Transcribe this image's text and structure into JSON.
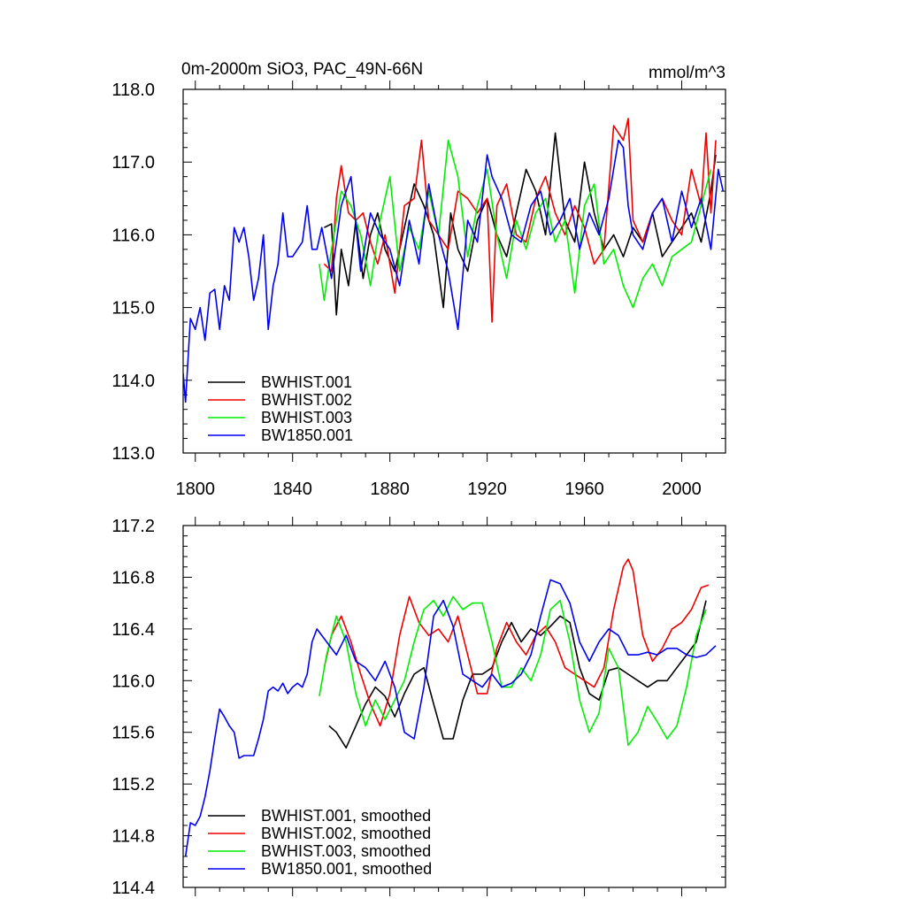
{
  "figure": {
    "title_left": "0m-2000m SiO3, PAC_49N-66N",
    "title_right": "mmol/m^3"
  },
  "colors": {
    "BWHIST.001": "#000000",
    "BWHIST.002": "#ee0000",
    "BWHIST.003": "#00ee00",
    "BW1850.001": "#0000ee"
  },
  "chart_data": [
    {
      "type": "line",
      "title": "0m-2000m SiO3, PAC_49N-66N",
      "xlim": [
        1795,
        2018
      ],
      "ylim": [
        113.0,
        118.0
      ],
      "x_ticks": [
        1800,
        1840,
        1880,
        1920,
        1960,
        2000
      ],
      "x_tick_labels": [
        "1800",
        "1840",
        "1880",
        "1920",
        "1960",
        "2000"
      ],
      "y_ticks": [
        113.0,
        114.0,
        115.0,
        116.0,
        117.0,
        118.0
      ],
      "y_tick_labels": [
        "113.0",
        "114.0",
        "115.0",
        "116.0",
        "117.0",
        "118.0"
      ],
      "legend": {
        "placement": "lower-left",
        "entries": [
          "BWHIST.001",
          "BWHIST.002",
          "BWHIST.003",
          "BW1850.001"
        ]
      },
      "series": [
        {
          "name": "BWHIST.001",
          "x": [
            1853,
            1856,
            1858,
            1860,
            1863,
            1866,
            1869,
            1872,
            1875,
            1878,
            1882,
            1886,
            1890,
            1894,
            1898,
            1902,
            1905,
            1908,
            1912,
            1916,
            1920,
            1924,
            1928,
            1932,
            1936,
            1940,
            1944,
            1948,
            1952,
            1956,
            1960,
            1964,
            1968,
            1972,
            1976,
            1980,
            1984,
            1988,
            1992,
            1996,
            2000,
            2004,
            2008,
            2012,
            2014
          ],
          "values": [
            116.1,
            116.15,
            114.9,
            115.8,
            115.3,
            116.2,
            115.4,
            116.0,
            116.3,
            115.8,
            115.5,
            116.1,
            116.7,
            116.4,
            116.0,
            115.0,
            116.3,
            115.8,
            115.5,
            116.2,
            116.5,
            116.0,
            115.7,
            116.3,
            116.9,
            116.6,
            116.0,
            117.4,
            116.2,
            115.9,
            117.0,
            116.3,
            115.8,
            116.0,
            115.7,
            116.1,
            115.9,
            116.3,
            115.7,
            115.9,
            116.1,
            116.3,
            115.9,
            116.6,
            117.1
          ]
        },
        {
          "name": "BWHIST.002",
          "x": [
            1853,
            1856,
            1858,
            1860,
            1863,
            1866,
            1869,
            1872,
            1875,
            1878,
            1882,
            1886,
            1890,
            1893,
            1896,
            1900,
            1904,
            1908,
            1912,
            1916,
            1920,
            1922,
            1924,
            1928,
            1932,
            1936,
            1940,
            1944,
            1948,
            1952,
            1956,
            1960,
            1964,
            1968,
            1972,
            1974,
            1976,
            1978,
            1980,
            1984,
            1988,
            1992,
            1996,
            2000,
            2004,
            2008,
            2010,
            2012,
            2014
          ],
          "values": [
            115.6,
            115.5,
            116.5,
            116.95,
            116.3,
            116.2,
            116.3,
            115.9,
            115.6,
            116.0,
            115.2,
            116.4,
            116.5,
            117.3,
            116.2,
            116.0,
            115.8,
            116.6,
            116.5,
            116.3,
            116.5,
            114.8,
            116.4,
            116.7,
            116.0,
            115.9,
            116.5,
            116.8,
            116.3,
            116.0,
            116.4,
            116.1,
            115.6,
            115.8,
            117.5,
            117.4,
            117.3,
            117.6,
            116.2,
            115.9,
            116.3,
            116.5,
            116.2,
            116.0,
            116.9,
            116.4,
            117.4,
            116.3,
            117.3
          ]
        },
        {
          "name": "BWHIST.003",
          "x": [
            1851,
            1853,
            1856,
            1860,
            1864,
            1868,
            1872,
            1876,
            1880,
            1884,
            1888,
            1892,
            1896,
            1900,
            1904,
            1908,
            1912,
            1916,
            1920,
            1924,
            1928,
            1932,
            1936,
            1940,
            1944,
            1948,
            1952,
            1956,
            1960,
            1964,
            1968,
            1972,
            1976,
            1980,
            1984,
            1988,
            1992,
            1996,
            2000,
            2004,
            2008,
            2012
          ],
          "values": [
            115.6,
            115.1,
            115.8,
            116.6,
            116.4,
            116.0,
            115.3,
            116.2,
            116.8,
            115.5,
            116.1,
            115.8,
            116.6,
            116.0,
            117.3,
            116.8,
            115.7,
            116.4,
            116.9,
            116.0,
            115.4,
            116.2,
            115.8,
            116.3,
            116.5,
            115.9,
            116.2,
            115.2,
            116.4,
            116.7,
            115.6,
            115.8,
            115.3,
            115.0,
            115.4,
            115.6,
            115.3,
            115.7,
            115.8,
            115.9,
            116.4,
            116.9
          ]
        },
        {
          "name": "BW1850.001",
          "x": [
            1795,
            1796,
            1798,
            1800,
            1802,
            1804,
            1806,
            1808,
            1810,
            1812,
            1814,
            1816,
            1818,
            1820,
            1822,
            1824,
            1826,
            1828,
            1830,
            1832,
            1834,
            1836,
            1838,
            1840,
            1842,
            1844,
            1846,
            1848,
            1850,
            1852,
            1856,
            1860,
            1864,
            1868,
            1872,
            1876,
            1880,
            1884,
            1888,
            1892,
            1896,
            1900,
            1904,
            1908,
            1912,
            1916,
            1920,
            1922,
            1926,
            1930,
            1934,
            1938,
            1942,
            1946,
            1950,
            1954,
            1958,
            1962,
            1966,
            1970,
            1974,
            1976,
            1978,
            1980,
            1984,
            1988,
            1992,
            1996,
            2000,
            2004,
            2008,
            2012,
            2015,
            2017
          ],
          "values": [
            114.1,
            113.7,
            114.85,
            114.7,
            115.0,
            114.55,
            115.2,
            115.25,
            114.7,
            115.3,
            115.1,
            116.1,
            115.9,
            116.1,
            115.7,
            115.1,
            115.4,
            116.0,
            114.7,
            115.3,
            115.6,
            116.3,
            115.7,
            115.7,
            115.8,
            115.9,
            116.4,
            115.8,
            115.8,
            116.1,
            115.4,
            116.4,
            116.8,
            115.5,
            116.3,
            116.0,
            115.8,
            115.3,
            116.2,
            115.6,
            116.7,
            116.0,
            115.5,
            114.7,
            116.2,
            115.9,
            117.1,
            116.8,
            116.5,
            116.0,
            115.9,
            116.4,
            116.6,
            116.0,
            116.2,
            116.5,
            115.8,
            116.3,
            116.0,
            116.5,
            117.3,
            117.2,
            116.4,
            116.0,
            115.8,
            116.3,
            116.5,
            115.9,
            116.6,
            116.1,
            116.5,
            115.8,
            116.9,
            116.6
          ]
        }
      ]
    },
    {
      "type": "line",
      "xlim": [
        1795,
        2018
      ],
      "ylim": [
        114.4,
        117.2
      ],
      "x_ticks": [
        1800,
        1840,
        1880,
        1920,
        1960,
        2000
      ],
      "y_ticks": [
        114.4,
        114.8,
        115.2,
        115.6,
        116.0,
        116.4,
        116.8,
        117.2
      ],
      "y_tick_labels": [
        "114.4",
        "114.8",
        "115.2",
        "115.6",
        "116.0",
        "116.4",
        "116.8",
        "117.2"
      ],
      "legend": {
        "placement": "lower-left",
        "entries": [
          "BWHIST.001, smoothed",
          "BWHIST.002, smoothed",
          "BWHIST.003, smoothed",
          "BW1850.001, smoothed"
        ]
      },
      "series": [
        {
          "name": "BWHIST.001, smoothed",
          "x": [
            1855,
            1858,
            1862,
            1866,
            1870,
            1874,
            1878,
            1882,
            1886,
            1890,
            1894,
            1898,
            1902,
            1906,
            1910,
            1914,
            1918,
            1922,
            1926,
            1930,
            1934,
            1938,
            1942,
            1946,
            1950,
            1954,
            1958,
            1962,
            1966,
            1970,
            1974,
            1978,
            1982,
            1986,
            1990,
            1994,
            1998,
            2002,
            2006,
            2010
          ],
          "values": [
            115.65,
            115.6,
            115.48,
            115.65,
            115.82,
            115.95,
            115.88,
            115.72,
            115.9,
            116.05,
            116.1,
            115.82,
            115.55,
            115.55,
            115.85,
            116.05,
            116.05,
            116.1,
            116.3,
            116.45,
            116.3,
            116.4,
            116.35,
            116.42,
            116.5,
            116.45,
            116.1,
            115.9,
            115.85,
            116.08,
            116.1,
            116.05,
            116.0,
            115.95,
            116.0,
            116.0,
            116.1,
            116.2,
            116.3,
            116.62
          ]
        },
        {
          "name": "BWHIST.002, smoothed",
          "x": [
            1853,
            1856,
            1860,
            1864,
            1868,
            1872,
            1876,
            1880,
            1884,
            1888,
            1892,
            1896,
            1900,
            1904,
            1908,
            1912,
            1916,
            1920,
            1924,
            1928,
            1932,
            1936,
            1940,
            1944,
            1948,
            1952,
            1956,
            1960,
            1964,
            1968,
            1972,
            1976,
            1978,
            1980,
            1984,
            1988,
            1992,
            1996,
            2000,
            2004,
            2008,
            2011
          ],
          "values": [
            116.1,
            116.35,
            116.5,
            116.3,
            116.05,
            115.82,
            115.65,
            115.9,
            116.35,
            116.65,
            116.45,
            116.35,
            116.4,
            116.3,
            116.5,
            116.2,
            115.9,
            115.9,
            116.25,
            116.45,
            116.3,
            116.2,
            116.35,
            116.42,
            116.3,
            116.1,
            116.05,
            116.0,
            115.95,
            116.1,
            116.55,
            116.88,
            116.94,
            116.85,
            116.35,
            116.15,
            116.25,
            116.4,
            116.45,
            116.55,
            116.72,
            116.74
          ]
        },
        {
          "name": "BWHIST.003, smoothed",
          "x": [
            1851,
            1854,
            1858,
            1862,
            1866,
            1870,
            1874,
            1878,
            1882,
            1886,
            1890,
            1894,
            1898,
            1902,
            1906,
            1910,
            1914,
            1918,
            1922,
            1926,
            1930,
            1934,
            1938,
            1942,
            1946,
            1950,
            1954,
            1958,
            1962,
            1966,
            1970,
            1974,
            1978,
            1982,
            1986,
            1990,
            1994,
            1998,
            2002,
            2006,
            2010
          ],
          "values": [
            115.88,
            116.2,
            116.5,
            116.3,
            115.9,
            115.65,
            115.85,
            115.7,
            115.85,
            116.0,
            116.3,
            116.55,
            116.62,
            116.5,
            116.65,
            116.55,
            116.6,
            116.6,
            116.3,
            115.95,
            115.95,
            116.1,
            116.0,
            116.2,
            116.55,
            116.62,
            116.3,
            115.85,
            115.6,
            115.75,
            116.25,
            116.1,
            115.5,
            115.6,
            115.8,
            115.68,
            115.55,
            115.65,
            115.95,
            116.35,
            116.55
          ]
        },
        {
          "name": "BW1850.001, smoothed",
          "x": [
            1796,
            1798,
            1800,
            1802,
            1804,
            1806,
            1808,
            1810,
            1812,
            1814,
            1816,
            1818,
            1820,
            1822,
            1824,
            1826,
            1828,
            1830,
            1832,
            1834,
            1836,
            1838,
            1840,
            1842,
            1844,
            1846,
            1848,
            1850,
            1854,
            1858,
            1862,
            1866,
            1870,
            1874,
            1878,
            1882,
            1886,
            1890,
            1894,
            1898,
            1902,
            1906,
            1910,
            1914,
            1918,
            1922,
            1926,
            1930,
            1934,
            1938,
            1942,
            1946,
            1950,
            1954,
            1958,
            1962,
            1966,
            1970,
            1974,
            1978,
            1982,
            1986,
            1990,
            1994,
            1998,
            2002,
            2006,
            2010,
            2014
          ],
          "values": [
            114.64,
            114.9,
            114.88,
            114.95,
            115.1,
            115.3,
            115.55,
            115.78,
            115.72,
            115.65,
            115.6,
            115.4,
            115.42,
            115.42,
            115.42,
            115.55,
            115.7,
            115.92,
            115.95,
            115.92,
            115.98,
            115.9,
            115.95,
            115.98,
            115.95,
            116.05,
            116.3,
            116.4,
            116.3,
            116.2,
            116.35,
            116.15,
            116.1,
            116.0,
            116.15,
            115.95,
            115.6,
            115.55,
            115.95,
            116.5,
            116.62,
            116.42,
            116.05,
            116.0,
            115.95,
            116.05,
            115.95,
            115.98,
            116.05,
            116.2,
            116.5,
            116.78,
            116.75,
            116.6,
            116.3,
            116.15,
            116.3,
            116.4,
            116.35,
            116.2,
            116.2,
            116.22,
            116.2,
            116.25,
            116.25,
            116.2,
            116.18,
            116.2,
            116.27
          ]
        }
      ]
    }
  ]
}
